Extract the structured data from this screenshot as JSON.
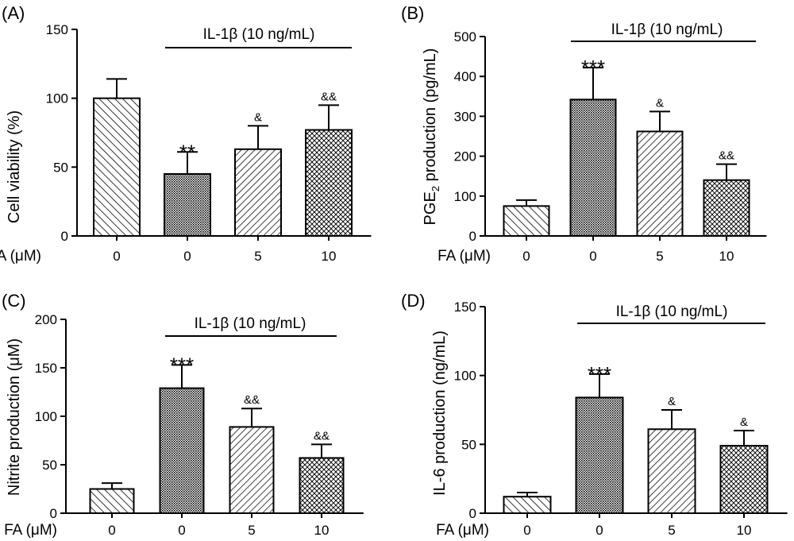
{
  "chart_data": [
    {
      "type": "bar",
      "panel_label": "(A)",
      "ylabel": "Cell viability (%)",
      "ylim": [
        0,
        150
      ],
      "yticks": [
        "0",
        "50",
        "100",
        "150"
      ],
      "xlabel": "FA (μM)",
      "categories": [
        "0",
        "0",
        "5",
        "10"
      ],
      "values": [
        100,
        45,
        63,
        77
      ],
      "errors": [
        14,
        16,
        17,
        18
      ],
      "significance": [
        "",
        "**",
        "&",
        "&&"
      ],
      "treatment_label": "IL-1β (10 ng/mL)",
      "treatment_span": [
        1,
        3
      ],
      "patterns": [
        "diag-right",
        "crosshatch",
        "diag-left",
        "dots"
      ]
    },
    {
      "type": "bar",
      "panel_label": "(B)",
      "ylabel": "PGE2 production (pg/mL)",
      "ylabel_main": "PGE",
      "ylabel_sub": "2",
      "ylabel_rest": " production (pg/mL)",
      "ylim": [
        0,
        500
      ],
      "yticks": [
        "0",
        "100",
        "200",
        "300",
        "400",
        "500"
      ],
      "xlabel": "FA (μM)",
      "categories": [
        "0",
        "0",
        "5",
        "10"
      ],
      "values": [
        75,
        342,
        262,
        140
      ],
      "errors": [
        15,
        80,
        50,
        40
      ],
      "significance": [
        "",
        "***",
        "&",
        "&&"
      ],
      "treatment_label": "IL-1β (10 ng/mL)",
      "treatment_span": [
        1,
        3
      ],
      "patterns": [
        "diag-right",
        "crosshatch",
        "diag-left",
        "dots"
      ]
    },
    {
      "type": "bar",
      "panel_label": "(C)",
      "ylabel": "Nitrite production (μM)",
      "ylim": [
        0,
        200
      ],
      "yticks": [
        "0",
        "50",
        "100",
        "150",
        "200"
      ],
      "xlabel": "FA (μM)",
      "categories": [
        "0",
        "0",
        "5",
        "10"
      ],
      "values": [
        25,
        129,
        89,
        57
      ],
      "errors": [
        6,
        24,
        19,
        14
      ],
      "significance": [
        "",
        "***",
        "&&",
        "&&"
      ],
      "treatment_label": "IL-1β (10 ng/mL)",
      "treatment_span": [
        1,
        3
      ],
      "patterns": [
        "diag-right",
        "crosshatch",
        "diag-left",
        "dots"
      ]
    },
    {
      "type": "bar",
      "panel_label": "(D)",
      "ylabel": "IL-6 production (ng/mL)",
      "ylim": [
        0,
        150
      ],
      "yticks": [
        "0",
        "50",
        "100",
        "150"
      ],
      "xlabel": "FA (μM)",
      "categories": [
        "0",
        "0",
        "5",
        "10"
      ],
      "values": [
        12,
        84,
        61,
        49
      ],
      "errors": [
        3,
        17,
        14,
        11
      ],
      "significance": [
        "",
        "***",
        "&",
        "&"
      ],
      "treatment_label": "IL-1β (10 ng/mL)",
      "treatment_span": [
        1,
        3
      ],
      "patterns": [
        "diag-right",
        "crosshatch",
        "diag-left",
        "dots"
      ]
    }
  ]
}
